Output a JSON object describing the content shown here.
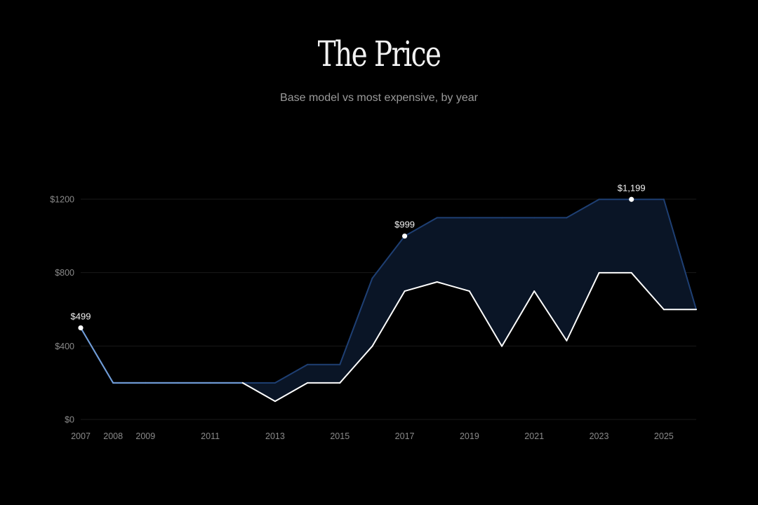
{
  "header": {
    "title": "The Price",
    "subtitle": "Base model vs most expensive, by year"
  },
  "colors": {
    "background": "#000000",
    "grid": "#1a1a1a",
    "max_line": "#1e3f73",
    "max_fill": "#0a1526",
    "base_line": "#ffffff",
    "shared_line": "#6f9bd6",
    "point": "#ffffff"
  },
  "chart_data": {
    "type": "area",
    "title": "The Price",
    "subtitle": "Base model vs most expensive, by year",
    "xlabel": "",
    "ylabel": "",
    "x": [
      2007,
      2008,
      2009,
      2010,
      2011,
      2012,
      2013,
      2014,
      2015,
      2016,
      2017,
      2018,
      2019,
      2020,
      2021,
      2022,
      2023,
      2024,
      2025,
      2026
    ],
    "series": [
      {
        "name": "Most expensive",
        "values": [
          499,
          199,
          199,
          199,
          199,
          199,
          199,
          299,
          299,
          769,
          999,
          1099,
          1099,
          1099,
          1099,
          1099,
          1199,
          1199,
          1199,
          599
        ]
      },
      {
        "name": "Base model",
        "values": [
          499,
          199,
          199,
          199,
          199,
          199,
          99,
          199,
          199,
          399,
          699,
          749,
          699,
          399,
          699,
          429,
          799,
          799,
          599,
          599
        ]
      }
    ],
    "ylim": [
      0,
      1300
    ],
    "yticks": [
      0,
      400,
      800,
      1200
    ],
    "ytick_labels": [
      "$0",
      "$400",
      "$800",
      "$1200"
    ],
    "xticks": [
      2007,
      2008,
      2009,
      2011,
      2013,
      2015,
      2017,
      2019,
      2021,
      2023,
      2025
    ],
    "xtick_labels": [
      "2007",
      "2008",
      "2009",
      "2011",
      "2013",
      "2015",
      "2017",
      "2019",
      "2021",
      "2023",
      "2025"
    ],
    "annotations": [
      {
        "year": 2007,
        "value": 499,
        "label": "$499"
      },
      {
        "year": 2017,
        "value": 999,
        "label": "$999"
      },
      {
        "year": 2024,
        "value": 1199,
        "label": "$1,199"
      }
    ],
    "grid": true
  }
}
